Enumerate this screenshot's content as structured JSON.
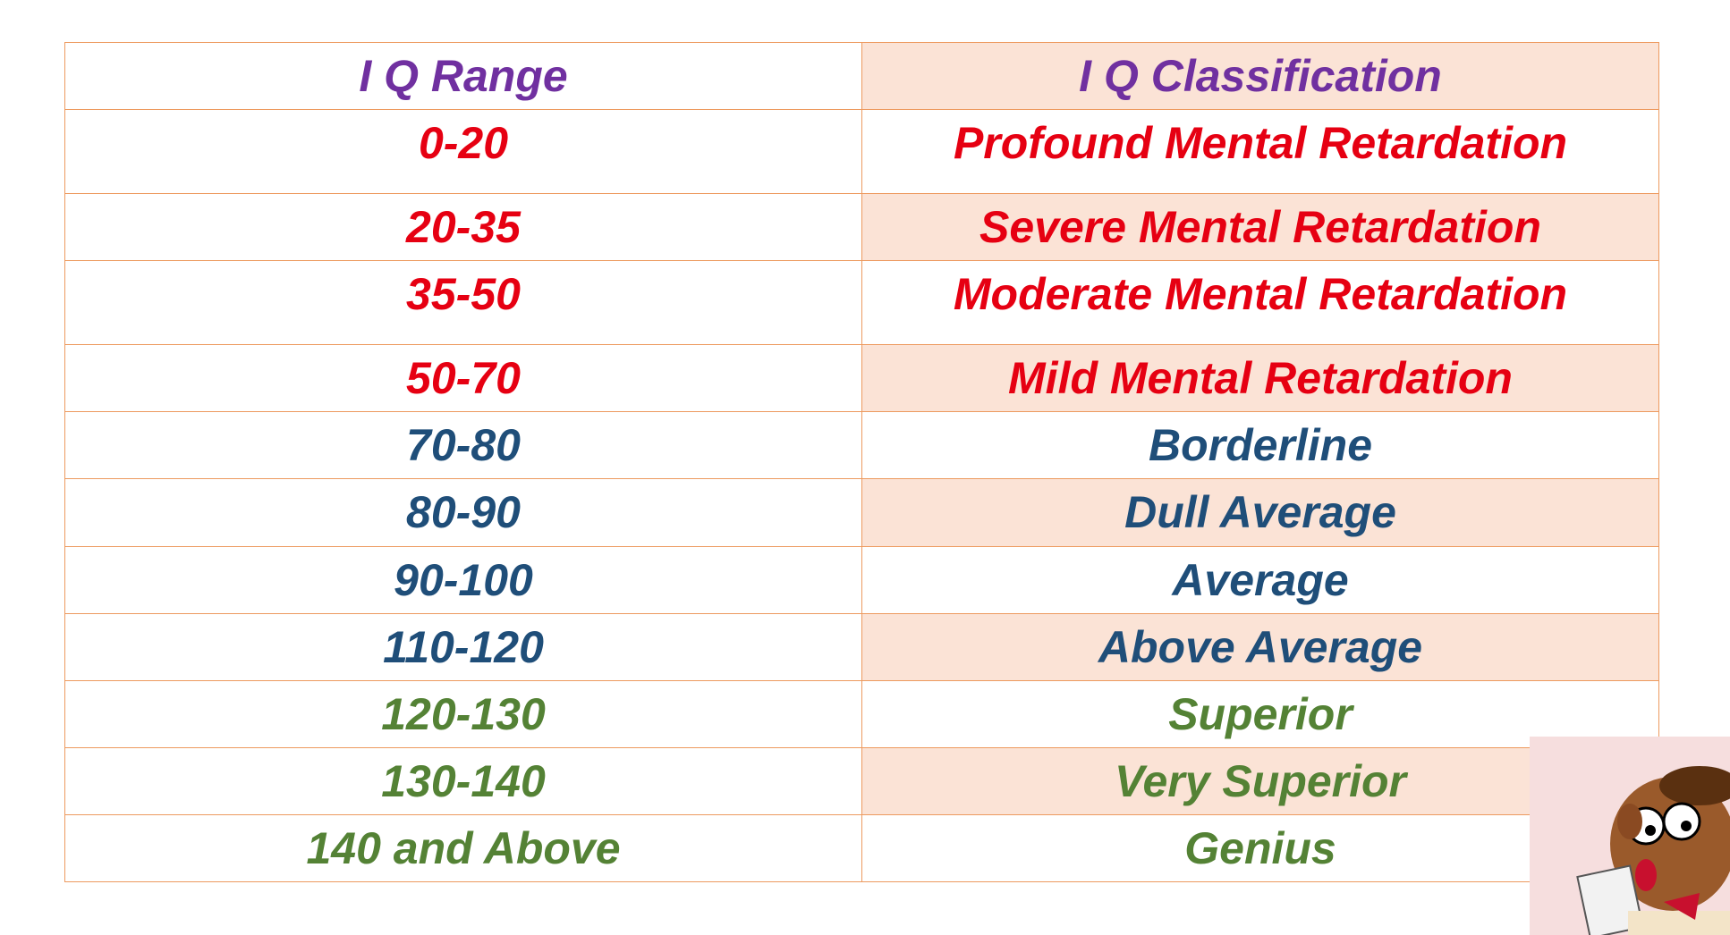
{
  "table": {
    "header": [
      "I Q  Range",
      "I Q Classification"
    ],
    "rows": [
      [
        "0-20",
        "Profound  Mental Retardation"
      ],
      [
        "20-35",
        "Severe Mental Retardation"
      ],
      [
        "35-50",
        "Moderate  Mental Retardation"
      ],
      [
        "50-70",
        "Mild Mental Retardation"
      ],
      [
        "70-80",
        "Borderline"
      ],
      [
        "80-90",
        "Dull Average"
      ],
      [
        "90-100",
        "Average"
      ],
      [
        "110-120",
        "Above Average"
      ],
      [
        "120-130",
        "Superior"
      ],
      [
        "130-140",
        "Very Superior"
      ],
      [
        "140 and Above",
        "Genius"
      ]
    ]
  }
}
